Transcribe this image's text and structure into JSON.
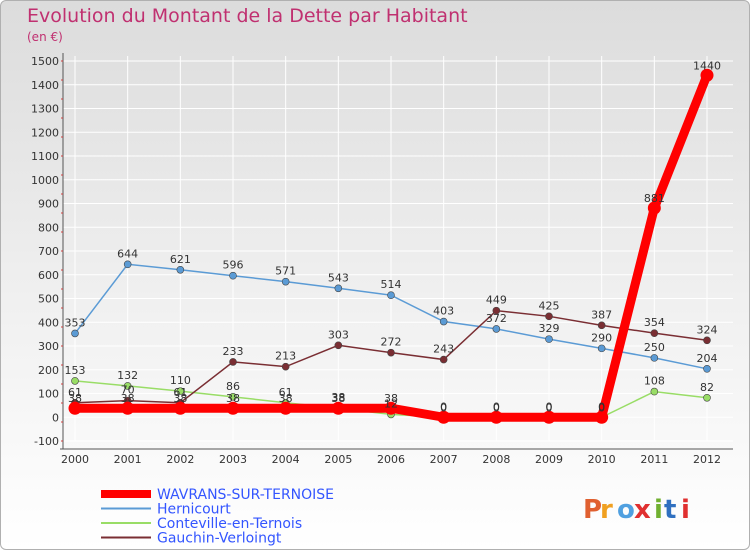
{
  "header": {
    "title": "Evolution du Montant de la Dette par Habitant",
    "subtitle": "(en €)"
  },
  "logo": {
    "text": "Proxiti",
    "colors": [
      "#e06030",
      "#f0a020",
      "#50a0e0",
      "#e03030",
      "#70b030",
      "#3070c0",
      "#e03030"
    ]
  },
  "chart_data": {
    "type": "line",
    "x": [
      2000,
      2001,
      2002,
      2003,
      2004,
      2005,
      2006,
      2007,
      2008,
      2009,
      2010,
      2011,
      2012
    ],
    "ylim": [
      -100,
      1500
    ],
    "yticks": [
      -100,
      0,
      100,
      200,
      300,
      400,
      500,
      600,
      700,
      800,
      900,
      1000,
      1100,
      1200,
      1300,
      1400,
      1500
    ],
    "grid": true,
    "legend_position": "bottom-left",
    "series": [
      {
        "name": "Hernicourt",
        "color": "#5b9bd5",
        "values": [
          353,
          644,
          621,
          596,
          571,
          543,
          514,
          403,
          372,
          329,
          290,
          250,
          204
        ]
      },
      {
        "name": "Conteville-en-Ternois",
        "color": "#99dd66",
        "values": [
          153,
          132,
          110,
          86,
          61,
          38,
          12,
          0,
          0,
          0,
          0,
          108,
          82
        ]
      },
      {
        "name": "Gauchin-Verloingt",
        "color": "#7a2e33",
        "values": [
          61,
          70,
          61,
          233,
          213,
          303,
          272,
          243,
          449,
          425,
          387,
          354,
          324
        ]
      },
      {
        "name": "WAVRANS-SUR-TERNOISE",
        "color": "#ff0000",
        "values": [
          38,
          38,
          38,
          38,
          38,
          38,
          38,
          0,
          0,
          0,
          0,
          881,
          1440
        ],
        "highlight": true
      }
    ],
    "point_labels": [
      {
        "series": 0,
        "labels": [
          "353",
          "644",
          "621",
          "596",
          "571",
          "543",
          "514",
          "403",
          "372",
          "329",
          "290",
          "250",
          "204"
        ]
      },
      {
        "series": 1,
        "labels": [
          "153",
          "132",
          "110",
          "86",
          "61",
          "38",
          "12",
          "0",
          "0",
          "0",
          "0",
          "108",
          "82"
        ]
      },
      {
        "series": 2,
        "labels": [
          "61",
          "70",
          "61",
          "233",
          "213",
          "303",
          "272",
          "243",
          "449",
          "425",
          "387",
          "354",
          "324"
        ]
      },
      {
        "series": 3,
        "labels": [
          "38",
          "38",
          "38",
          "38",
          "38",
          "38",
          "38",
          "0",
          "0",
          "0",
          "0",
          "881",
          "1440"
        ]
      }
    ],
    "legend": [
      {
        "label": "WAVRANS-SUR-TERNOISE",
        "color": "#ff0000",
        "text_color": "#3355ff",
        "thick": true
      },
      {
        "label": "Hernicourt",
        "color": "#5b9bd5",
        "text_color": "#3355ff",
        "thick": false
      },
      {
        "label": "Conteville-en-Ternois",
        "color": "#99dd66",
        "text_color": "#3355ff",
        "thick": false
      },
      {
        "label": "Gauchin-Verloingt",
        "color": "#7a2e33",
        "text_color": "#3355ff",
        "thick": false
      }
    ]
  }
}
